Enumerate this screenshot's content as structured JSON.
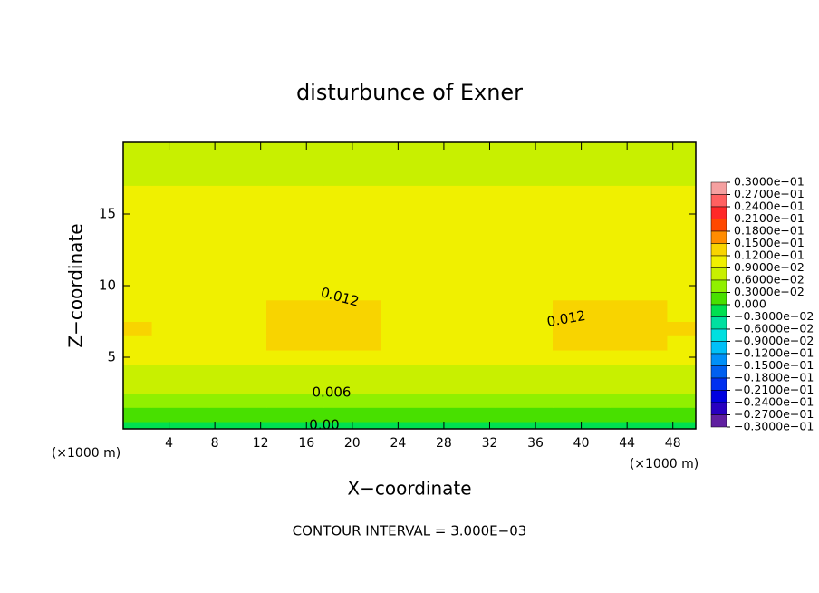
{
  "chart_data": {
    "type": "contour",
    "title": "disturbunce of Exner",
    "xlabel": "X−coordinate",
    "ylabel": "Z−coordinate",
    "x_unit_labels": [
      "(×1000 m)",
      "(×1000 m)"
    ],
    "note": "CONTOUR INTERVAL = 3.000E−03",
    "xlim": [
      0,
      50
    ],
    "ylim": [
      0,
      20
    ],
    "xticks": [
      4,
      8,
      12,
      16,
      20,
      24,
      28,
      32,
      36,
      40,
      44,
      48
    ],
    "yticks": [
      5,
      10,
      15
    ],
    "x": [
      0,
      5,
      10,
      15,
      20,
      25,
      30,
      35,
      40,
      45,
      50
    ],
    "y": [
      0,
      1,
      2,
      3,
      4,
      5,
      6,
      7,
      8,
      10,
      12,
      14,
      16,
      18,
      20
    ],
    "z": [
      [
        -0.001,
        -0.001,
        -0.001,
        -0.001,
        -0.001,
        -0.001,
        -0.001,
        -0.001,
        -0.001,
        -0.001,
        -0.001
      ],
      [
        0.002,
        0.002,
        0.002,
        0.002,
        0.002,
        0.002,
        0.002,
        0.002,
        0.002,
        0.002,
        0.002
      ],
      [
        0.0045,
        0.0045,
        0.0045,
        0.0045,
        0.0045,
        0.0045,
        0.0045,
        0.0045,
        0.0045,
        0.0045,
        0.0045
      ],
      [
        0.0065,
        0.0065,
        0.0065,
        0.0065,
        0.0065,
        0.0065,
        0.0065,
        0.0065,
        0.0065,
        0.0065,
        0.0065
      ],
      [
        0.008,
        0.008,
        0.008,
        0.008,
        0.008,
        0.008,
        0.008,
        0.008,
        0.008,
        0.008,
        0.008
      ],
      [
        0.01,
        0.0095,
        0.0098,
        0.0105,
        0.0105,
        0.0098,
        0.0095,
        0.0098,
        0.0101,
        0.0101,
        0.0098
      ],
      [
        0.0118,
        0.0108,
        0.0113,
        0.0128,
        0.0128,
        0.0113,
        0.0108,
        0.0116,
        0.0123,
        0.0123,
        0.0116
      ],
      [
        0.0122,
        0.0112,
        0.0117,
        0.0132,
        0.0132,
        0.0117,
        0.0112,
        0.0119,
        0.0127,
        0.0127,
        0.012
      ],
      [
        0.0118,
        0.0108,
        0.0113,
        0.0128,
        0.0128,
        0.0113,
        0.0108,
        0.0116,
        0.0123,
        0.0123,
        0.0116
      ],
      [
        0.0102,
        0.0102,
        0.0102,
        0.0112,
        0.0112,
        0.0102,
        0.0102,
        0.0102,
        0.0104,
        0.0104,
        0.0102
      ],
      [
        0.0098,
        0.0098,
        0.0098,
        0.0098,
        0.0098,
        0.0098,
        0.0098,
        0.0098,
        0.0098,
        0.0098,
        0.0098
      ],
      [
        0.0095,
        0.0095,
        0.0095,
        0.0095,
        0.0095,
        0.0095,
        0.0095,
        0.0095,
        0.0095,
        0.0095,
        0.0095
      ],
      [
        0.0092,
        0.0092,
        0.0092,
        0.0092,
        0.0092,
        0.0092,
        0.0092,
        0.0092,
        0.0092,
        0.0092,
        0.0092
      ],
      [
        0.0088,
        0.0088,
        0.0088,
        0.0088,
        0.0088,
        0.0088,
        0.0088,
        0.0088,
        0.0088,
        0.0088,
        0.0088
      ],
      [
        0.0085,
        0.0085,
        0.0085,
        0.0085,
        0.0085,
        0.0085,
        0.0085,
        0.0085,
        0.0085,
        0.0085,
        0.0085
      ]
    ],
    "contour_labels": [
      "0.012",
      "0.012",
      "0.006",
      "0.00"
    ],
    "colorbar": {
      "levels": [
        {
          "value": 0.03,
          "label": "0.3000e−01"
        },
        {
          "value": 0.027,
          "label": "0.2700e−01"
        },
        {
          "value": 0.024,
          "label": "0.2400e−01"
        },
        {
          "value": 0.021,
          "label": "0.2100e−01"
        },
        {
          "value": 0.018,
          "label": "0.1800e−01"
        },
        {
          "value": 0.015,
          "label": "0.1500e−01"
        },
        {
          "value": 0.012,
          "label": "0.1200e−01"
        },
        {
          "value": 0.009,
          "label": "0.9000e−02"
        },
        {
          "value": 0.006,
          "label": "0.6000e−02"
        },
        {
          "value": 0.003,
          "label": "0.3000e−02"
        },
        {
          "value": 0,
          "label": "0.000"
        },
        {
          "value": -0.003,
          "label": "−0.3000e−02"
        },
        {
          "value": -0.006,
          "label": "−0.6000e−02"
        },
        {
          "value": -0.009,
          "label": "−0.9000e−02"
        },
        {
          "value": -0.012,
          "label": "−0.1200e−01"
        },
        {
          "value": -0.015,
          "label": "−0.1500e−01"
        },
        {
          "value": -0.018,
          "label": "−0.1800e−01"
        },
        {
          "value": -0.021,
          "label": "−0.2100e−01"
        },
        {
          "value": -0.024,
          "label": "−0.2400e−01"
        },
        {
          "value": -0.027,
          "label": "−0.2700e−01"
        },
        {
          "value": -0.03,
          "label": "−0.3000e−01"
        }
      ],
      "colors": [
        "#f5a0a0",
        "#ff6060",
        "#ff2828",
        "#ff4800",
        "#ff8c00",
        "#f8d400",
        "#f0f000",
        "#c8f000",
        "#90f000",
        "#48e000",
        "#00e050",
        "#00e0a0",
        "#00e0e0",
        "#00c0f8",
        "#0090f8",
        "#0060f0",
        "#0030f0",
        "#0000e0",
        "#2800c0",
        "#6020a0"
      ]
    }
  }
}
